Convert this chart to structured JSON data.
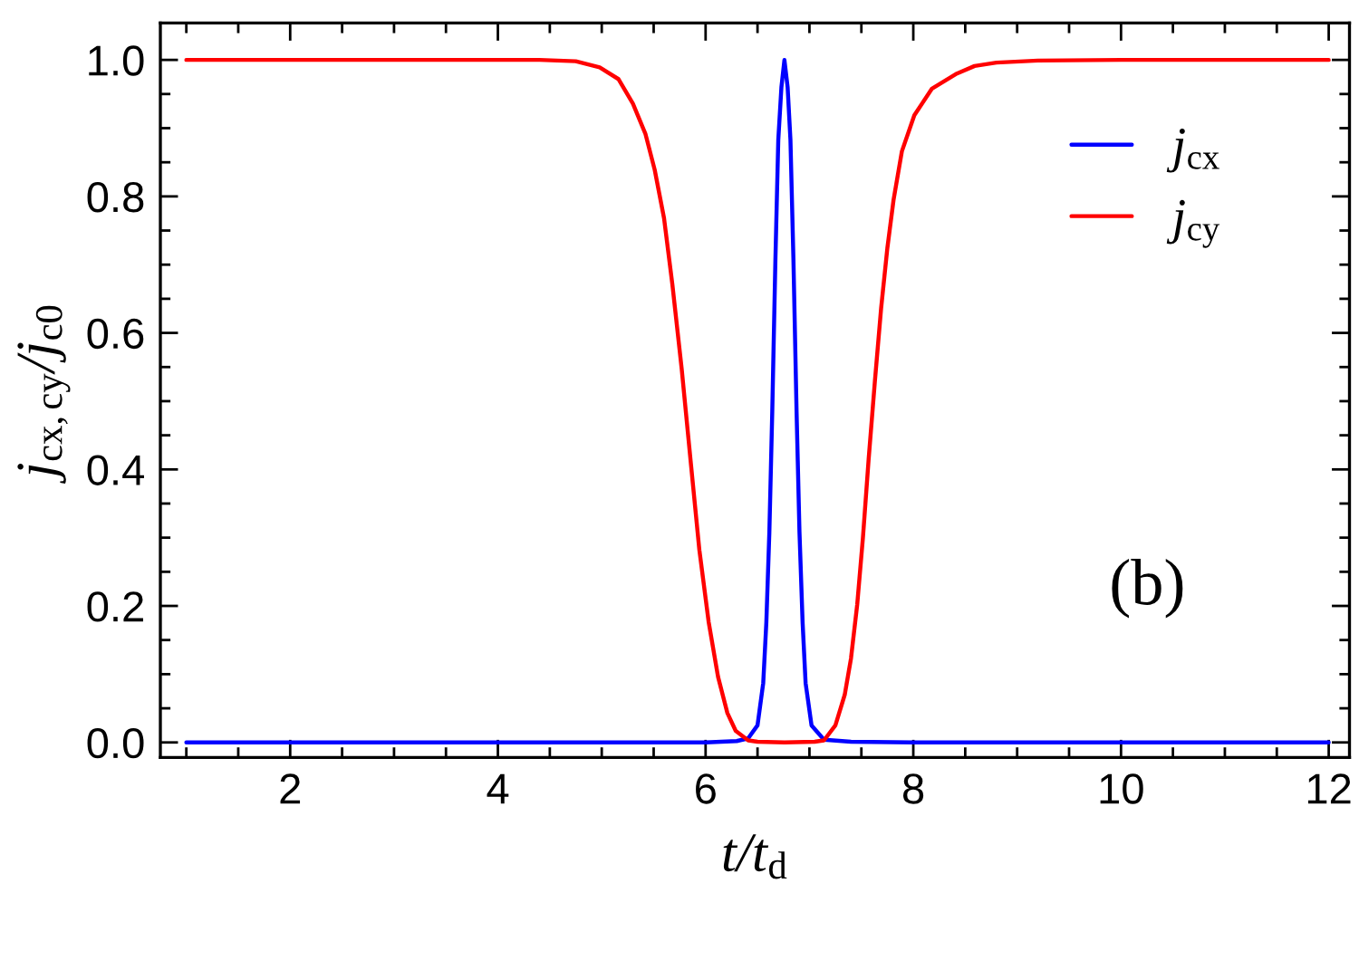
{
  "chart_data": {
    "type": "line",
    "xlabel": "t/t$_{d}$",
    "ylabel": "j$_{cx,cy}$/j$_{c0}$",
    "annotations": [
      "(b)"
    ],
    "xlim": [
      0.75,
      12.2
    ],
    "ylim": [
      -0.022,
      1.054
    ],
    "xticks": [
      {
        "value": 1,
        "label": null
      },
      {
        "value": 1.5,
        "label": null
      },
      2,
      {
        "value": 2.5,
        "label": null
      },
      {
        "value": 3,
        "label": null
      },
      {
        "value": 3.5,
        "label": null
      },
      4,
      {
        "value": 4.5,
        "label": null
      },
      {
        "value": 5,
        "label": null
      },
      {
        "value": 5.5,
        "label": null
      },
      6,
      {
        "value": 6.5,
        "label": null
      },
      {
        "value": 7,
        "label": null
      },
      {
        "value": 7.5,
        "label": null
      },
      8,
      {
        "value": 8.5,
        "label": null
      },
      {
        "value": 9,
        "label": null
      },
      {
        "value": 9.5,
        "label": null
      },
      10,
      {
        "value": 10.5,
        "label": null
      },
      {
        "value": 11,
        "label": null
      },
      {
        "value": 11.5,
        "label": null
      },
      12
    ],
    "yticks": [
      {
        "value": 0,
        "label": "0.0"
      },
      {
        "value": 0.05,
        "label": null
      },
      {
        "value": 0.1,
        "label": null
      },
      {
        "value": 0.15,
        "label": null
      },
      0.2,
      {
        "value": 0.25,
        "label": null
      },
      {
        "value": 0.3,
        "label": null
      },
      {
        "value": 0.35,
        "label": null
      },
      0.4,
      {
        "value": 0.45,
        "label": null
      },
      {
        "value": 0.5,
        "label": null
      },
      {
        "value": 0.55,
        "label": null
      },
      0.6,
      {
        "value": 0.65,
        "label": null
      },
      {
        "value": 0.7,
        "label": null
      },
      {
        "value": 0.75,
        "label": null
      },
      0.8,
      {
        "value": 0.85,
        "label": null
      },
      {
        "value": 0.9,
        "label": null
      },
      {
        "value": 0.95,
        "label": null
      },
      {
        "value": 1,
        "label": "1.0"
      }
    ],
    "legend": "top right",
    "line_style": "solid",
    "series": [
      {
        "name": "j$_{cx}$",
        "color": "#0000ff",
        "x": [
          1,
          4,
          6.0,
          6.3,
          6.41,
          6.5,
          6.555,
          6.585,
          6.614,
          6.642,
          6.672,
          6.7,
          6.73,
          6.759,
          6.79,
          6.817,
          6.846,
          6.876,
          6.904,
          6.934,
          6.963,
          7.02,
          7.14,
          7.4,
          8,
          12
        ],
        "values": [
          0,
          0,
          0,
          0.002,
          0.006,
          0.025,
          0.087,
          0.176,
          0.308,
          0.485,
          0.706,
          0.883,
          0.96,
          1.0,
          0.96,
          0.883,
          0.706,
          0.485,
          0.308,
          0.176,
          0.087,
          0.025,
          0.004,
          0.001,
          0,
          0
        ]
      },
      {
        "name": "j$_{cy}$",
        "color": "#ff0000",
        "x": [
          1,
          3,
          4.4,
          4.75,
          4.98,
          5.16,
          5.3,
          5.42,
          5.51,
          5.6,
          5.68,
          5.77,
          5.86,
          5.94,
          6.03,
          6.12,
          6.21,
          6.29,
          6.41,
          6.5,
          6.76,
          7.05,
          7.14,
          7.25,
          7.34,
          7.4,
          7.46,
          7.515,
          7.57,
          7.63,
          7.69,
          7.75,
          7.81,
          7.89,
          8.01,
          8.18,
          8.42,
          8.59,
          8.8,
          9.2,
          10,
          12
        ],
        "values": [
          1,
          1,
          1,
          0.998,
          0.989,
          0.972,
          0.936,
          0.892,
          0.839,
          0.768,
          0.671,
          0.547,
          0.406,
          0.282,
          0.176,
          0.096,
          0.043,
          0.017,
          0.003,
          0.001,
          0,
          0.001,
          0.003,
          0.025,
          0.07,
          0.123,
          0.202,
          0.3,
          0.415,
          0.529,
          0.636,
          0.724,
          0.795,
          0.866,
          0.919,
          0.958,
          0.98,
          0.991,
          0.996,
          0.999,
          1,
          1
        ]
      }
    ]
  }
}
